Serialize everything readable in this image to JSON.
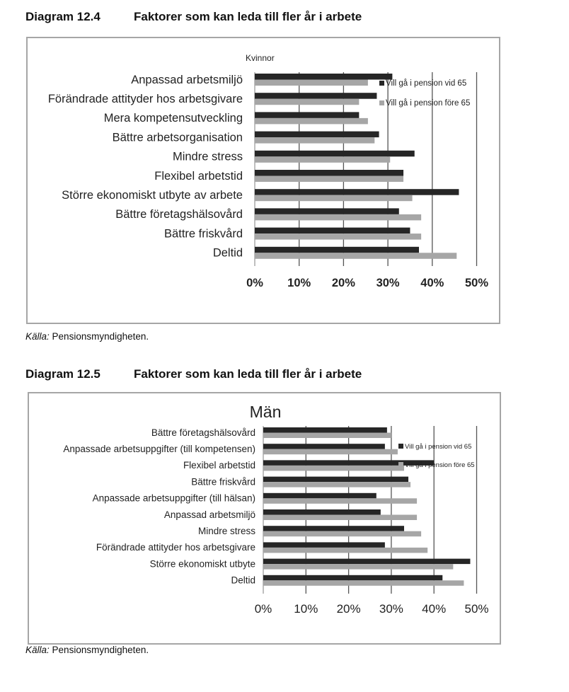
{
  "diagrams": [
    {
      "number": "Diagram 12.4",
      "title": "Faktorer som kan leda till fler år i arbete",
      "source_label": "Källa:",
      "source_text": "Pensionsmyndigheten."
    },
    {
      "number": "Diagram 12.5",
      "title": "Faktorer som kan leda till fler år i arbete",
      "source_label": "Källa:",
      "source_text": "Pensionsmyndigheten."
    }
  ],
  "chart_data": [
    {
      "type": "bar",
      "orientation": "horizontal",
      "title": "Kvinnor",
      "categories": [
        "Anpassad arbetsmiljö",
        "Förändrade attityder hos arbetsgivare",
        "Mera kompetensutveckling",
        "Bättre arbetsorganisation",
        "Mindre stress",
        "Flexibel arbetstid",
        "Större ekonomiskt utbyte av arbete",
        "Bättre företagshälsovård",
        "Bättre friskvård",
        "Deltid"
      ],
      "series": [
        {
          "name": "Vill gå i pension vid 65",
          "color": "#262626",
          "values": [
            31,
            27.5,
            23.5,
            28,
            36,
            33.5,
            46,
            32.5,
            35,
            37
          ]
        },
        {
          "name": "Vill gå i pension före 65",
          "color": "#a6a6a6",
          "values": [
            25.5,
            23.5,
            25.5,
            27,
            30.5,
            33.5,
            35.5,
            37.5,
            37.5,
            45.5
          ]
        }
      ],
      "xlim": [
        0,
        50
      ],
      "ticks": [
        "0%",
        "10%",
        "20%",
        "30%",
        "40%",
        "50%"
      ],
      "grid": true,
      "legend_position": "top-right"
    },
    {
      "type": "bar",
      "orientation": "horizontal",
      "title": "Män",
      "categories": [
        "Bättre företagshälsovård",
        "Anpassade arbetsuppgifter (till kompetensen)",
        "Flexibel arbetstid",
        "Bättre friskvård",
        "Anpassade arbetsuppgifter (till hälsan)",
        "Anpassad arbetsmiljö",
        "Mindre stress",
        "Förändrade attityder hos arbetsgivare",
        "Större ekonomiskt utbyte",
        "Deltid"
      ],
      "series": [
        {
          "name": "Vill gå i pension vid 65",
          "color": "#262626",
          "values": [
            29,
            28.5,
            40,
            34,
            26.5,
            27.5,
            33,
            28.5,
            48.5,
            42
          ]
        },
        {
          "name": "Vill gå i pension före 65",
          "color": "#a6a6a6",
          "values": [
            30,
            31.5,
            33,
            34.5,
            36,
            36,
            37,
            38.5,
            44.5,
            47
          ]
        }
      ],
      "xlim": [
        0,
        50
      ],
      "ticks": [
        "0%",
        "10%",
        "20%",
        "30%",
        "40%",
        "50%"
      ],
      "grid": true,
      "legend_position": "top-right"
    }
  ]
}
